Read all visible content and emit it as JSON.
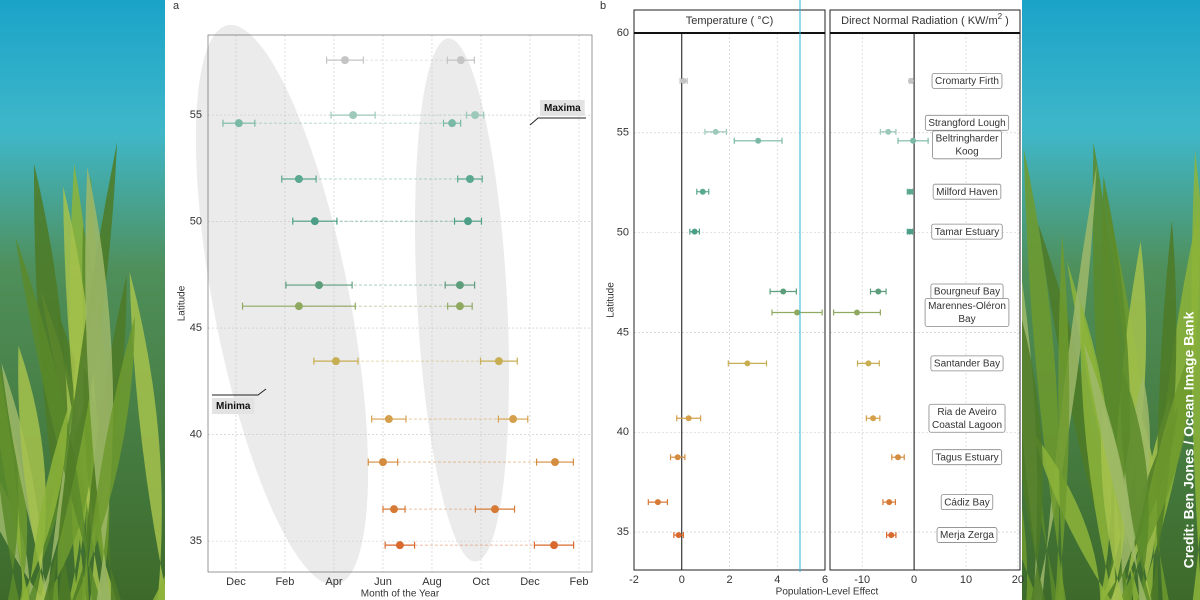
{
  "credit": "Credit: Ben Jones / Ocean Image Bank",
  "chart_data": [
    {
      "type": "dumbbell",
      "panel": "a",
      "x_label": "Month of the Year",
      "y_label": "Latitude",
      "xlim": [
        -1.14,
        14.53
      ],
      "ylim": [
        33.55,
        58.76
      ],
      "xticks": [
        {
          "value": 0,
          "label": "Dec"
        },
        {
          "value": 2,
          "label": "Feb"
        },
        {
          "value": 4,
          "label": "Apr"
        },
        {
          "value": 6,
          "label": "Jun"
        },
        {
          "value": 8,
          "label": "Aug"
        },
        {
          "value": 10,
          "label": "Oct"
        },
        {
          "value": 12,
          "label": "Dec"
        },
        {
          "value": 14,
          "label": "Feb"
        }
      ],
      "yticks": [
        35,
        40,
        45,
        50,
        55
      ],
      "grid": true,
      "latitudes": [
        57.58,
        55.0,
        54.62,
        52.0,
        50.02,
        47.02,
        46.03,
        43.45,
        40.73,
        38.71,
        36.5,
        34.81
      ],
      "colors": [
        "#c4c4c4",
        "#9cc9b9",
        "#7ab9a6",
        "#5aa88f",
        "#4c9f86",
        "#5c9d7c",
        "#8fa961",
        "#c8ae53",
        "#d5a04b",
        "#d48c3f",
        "#d67a36",
        "#d9692e"
      ],
      "series": [
        {
          "name": "Minima",
          "x": [
            4.45,
            4.78,
            0.12,
            2.57,
            3.22,
            3.39,
            2.57,
            4.08,
            6.24,
            6.0,
            6.45,
            6.69
          ],
          "xerr": [
            0.75,
            0.9,
            0.65,
            0.7,
            0.9,
            1.35,
            2.3,
            0.9,
            0.7,
            0.6,
            0.45,
            0.6
          ]
        },
        {
          "name": "Maxima",
          "x": [
            9.18,
            9.76,
            8.82,
            9.55,
            9.47,
            9.14,
            9.14,
            10.73,
            11.31,
            13.02,
            10.57,
            12.98
          ],
          "xerr": [
            0.55,
            0.35,
            0.35,
            0.5,
            0.55,
            0.6,
            0.5,
            0.75,
            0.6,
            0.75,
            0.8,
            0.8
          ]
        }
      ]
    },
    {
      "type": "forest",
      "panel": "b",
      "x_label": "Population-Level Effect",
      "y_label": "Latitude",
      "ylim": [
        33.1,
        60
      ],
      "yticks": [
        35,
        40,
        45,
        50,
        55,
        60
      ],
      "grid": true,
      "latitudes": [
        57.6,
        55.05,
        54.6,
        52.05,
        50.05,
        47.05,
        46.0,
        43.45,
        40.7,
        38.75,
        36.5,
        34.85
      ],
      "colors": [
        "#c4c4c4",
        "#9cc9b9",
        "#7ab9a6",
        "#5aa88f",
        "#4c9f86",
        "#5c9d7c",
        "#8fa961",
        "#c8ae53",
        "#d5a04b",
        "#d48c3f",
        "#d67a36",
        "#d9692e"
      ],
      "site_labels": [
        [
          "Cromarty Firth"
        ],
        [
          "Strangford Lough"
        ],
        [
          "Beltringharder",
          "Koog"
        ],
        [
          "Milford Haven"
        ],
        [
          "Tamar Estuary"
        ],
        [
          "Bourgneuf Bay"
        ],
        [
          "Marennes-Oléron",
          "Bay"
        ],
        [
          "Santander Bay"
        ],
        [
          "Ria de Aveiro",
          "Coastal Lagoon"
        ],
        [
          "Tagus Estuary"
        ],
        [
          "Cádiz Bay"
        ],
        [
          "Merja Zerga"
        ]
      ],
      "facets": [
        {
          "title": [
            "Temperature ( °C)"
          ],
          "xlim": [
            -2,
            6
          ],
          "xticks": [
            -2,
            0,
            2,
            4,
            6
          ],
          "values": [
            0.08,
            1.42,
            3.2,
            0.88,
            0.54,
            4.25,
            4.83,
            2.75,
            0.29,
            -0.17,
            -1.0,
            -0.13
          ],
          "errors": [
            0.15,
            0.45,
            1.0,
            0.25,
            0.2,
            0.55,
            1.05,
            0.8,
            0.5,
            0.3,
            0.4,
            0.2
          ]
        },
        {
          "title": [
            "Direct Normal Radiation ( KW/m",
            "2",
            " )"
          ],
          "xlim": [
            -16.2,
            20.4
          ],
          "xticks": [
            -10,
            0,
            10,
            20
          ],
          "values": [
            -0.6,
            -5.0,
            -0.2,
            -0.8,
            -0.8,
            -6.9,
            -11.0,
            -8.8,
            -7.9,
            -3.1,
            -4.8,
            -4.4
          ],
          "errors": [
            0.3,
            1.5,
            2.9,
            0.5,
            0.5,
            1.5,
            4.5,
            2.1,
            1.3,
            1.2,
            1.2,
            0.9
          ]
        }
      ]
    }
  ]
}
